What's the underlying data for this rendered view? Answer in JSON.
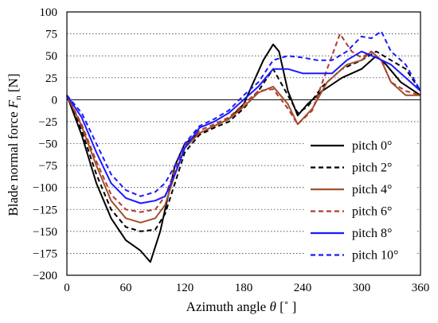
{
  "chart_data": {
    "type": "line",
    "title": "",
    "xlabel_pre": "Azimuth angle ",
    "xlabel_sym": "θ",
    "xlabel_post": " [˚ ]",
    "ylabel_pre": "Blade normal force ",
    "ylabel_sym": "F",
    "ylabel_sub": "n",
    "ylabel_post": " [N]",
    "xlim": [
      0,
      360
    ],
    "ylim": [
      -200,
      100
    ],
    "xticks": [
      0,
      60,
      120,
      180,
      240,
      300,
      360
    ],
    "yticks": [
      100,
      75,
      50,
      25,
      0,
      -25,
      -50,
      -75,
      -100,
      -125,
      -150,
      -175,
      -200
    ],
    "grid": "horizontal dotted",
    "legend_position": "bottom-right",
    "series": [
      {
        "name": "pitch 0°",
        "color": "#000000",
        "dash": "solid",
        "x": [
          0,
          15,
          30,
          45,
          60,
          75,
          85,
          95,
          100,
          105,
          110,
          120,
          135,
          150,
          165,
          180,
          190,
          200,
          210,
          216,
          225,
          235,
          245,
          260,
          280,
          300,
          315,
          325,
          340,
          360
        ],
        "y": [
          5,
          -40,
          -95,
          -135,
          -160,
          -172,
          -185,
          -150,
          -125,
          -100,
          -75,
          -50,
          -38,
          -30,
          -22,
          -5,
          20,
          45,
          63,
          55,
          10,
          -18,
          -5,
          10,
          25,
          35,
          50,
          40,
          20,
          5
        ]
      },
      {
        "name": "pitch 2°",
        "color": "#000000",
        "dash": "dashed",
        "x": [
          0,
          15,
          30,
          45,
          60,
          75,
          90,
          100,
          110,
          120,
          135,
          150,
          165,
          180,
          195,
          210,
          225,
          235,
          245,
          260,
          280,
          300,
          315,
          330,
          345,
          360
        ],
        "y": [
          5,
          -35,
          -85,
          -125,
          -145,
          -150,
          -148,
          -130,
          -95,
          -60,
          -40,
          -32,
          -25,
          -10,
          10,
          35,
          5,
          -15,
          -8,
          15,
          35,
          45,
          55,
          45,
          35,
          10
        ]
      },
      {
        "name": "pitch 4°",
        "color": "#a0522d",
        "dash": "solid",
        "x": [
          0,
          15,
          30,
          45,
          60,
          75,
          90,
          100,
          110,
          120,
          135,
          150,
          165,
          180,
          195,
          210,
          225,
          235,
          250,
          265,
          285,
          300,
          310,
          320,
          330,
          345,
          360
        ],
        "y": [
          5,
          -30,
          -75,
          -115,
          -135,
          -140,
          -135,
          -120,
          -85,
          -55,
          -38,
          -30,
          -22,
          -8,
          8,
          15,
          -5,
          -28,
          -10,
          20,
          40,
          45,
          55,
          45,
          20,
          5,
          5
        ]
      },
      {
        "name": "pitch 6°",
        "color": "#b03a2e",
        "dash": "dashed",
        "x": [
          0,
          15,
          30,
          45,
          60,
          75,
          90,
          100,
          110,
          120,
          135,
          150,
          165,
          180,
          195,
          210,
          225,
          235,
          250,
          265,
          278,
          290,
          300,
          310,
          320,
          330,
          345,
          360
        ],
        "y": [
          5,
          -28,
          -70,
          -108,
          -125,
          -128,
          -125,
          -110,
          -80,
          -52,
          -35,
          -28,
          -20,
          -5,
          10,
          12,
          -10,
          -28,
          -12,
          35,
          75,
          55,
          48,
          55,
          45,
          20,
          10,
          5
        ]
      },
      {
        "name": "pitch 8°",
        "color": "#1a1aff",
        "dash": "solid",
        "x": [
          0,
          15,
          30,
          45,
          60,
          75,
          90,
          100,
          110,
          120,
          135,
          150,
          165,
          180,
          195,
          210,
          225,
          240,
          255,
          270,
          285,
          300,
          315,
          330,
          345,
          360
        ],
        "y": [
          5,
          -20,
          -60,
          -95,
          -112,
          -118,
          -115,
          -110,
          -85,
          -55,
          -32,
          -25,
          -15,
          0,
          15,
          35,
          35,
          30,
          30,
          30,
          45,
          55,
          48,
          40,
          25,
          10
        ]
      },
      {
        "name": "pitch 10°",
        "color": "#1a1aff",
        "dash": "dashed",
        "x": [
          0,
          15,
          30,
          45,
          60,
          75,
          90,
          100,
          110,
          120,
          135,
          150,
          165,
          180,
          195,
          210,
          225,
          240,
          255,
          270,
          285,
          300,
          310,
          320,
          330,
          345,
          360
        ],
        "y": [
          5,
          -15,
          -50,
          -85,
          -103,
          -110,
          -105,
          -95,
          -75,
          -50,
          -30,
          -22,
          -12,
          5,
          20,
          45,
          50,
          48,
          45,
          45,
          55,
          72,
          70,
          78,
          55,
          40,
          10
        ]
      }
    ]
  }
}
